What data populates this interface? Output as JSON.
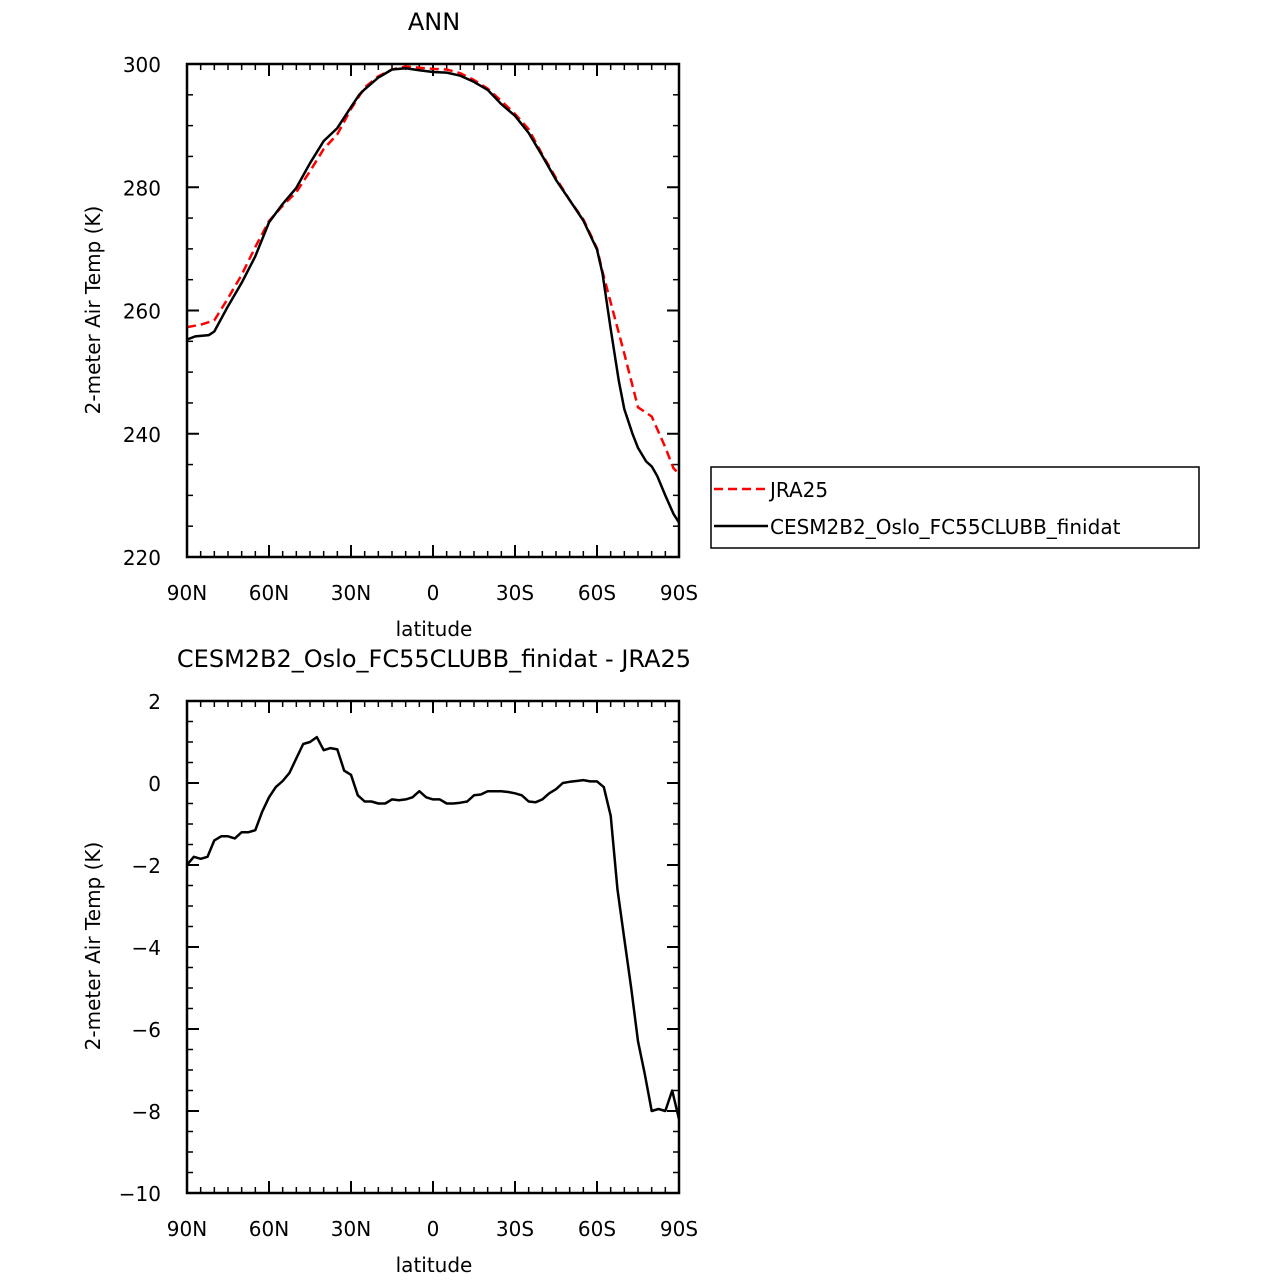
{
  "chart_data": [
    {
      "type": "line",
      "title": "ANN",
      "xlabel": "latitude",
      "ylabel": "2-meter Air Temp (K)",
      "xlim": [
        90,
        -90
      ],
      "ylim": [
        220,
        300
      ],
      "xticks": [
        {
          "value": 90,
          "label": "90N"
        },
        {
          "value": 60,
          "label": "60N"
        },
        {
          "value": 30,
          "label": "30N"
        },
        {
          "value": 0,
          "label": "0"
        },
        {
          "value": -30,
          "label": "30S"
        },
        {
          "value": -60,
          "label": "60S"
        },
        {
          "value": -90,
          "label": "90S"
        }
      ],
      "yticks": [
        {
          "value": 300,
          "label": "300"
        },
        {
          "value": 280,
          "label": "280"
        },
        {
          "value": 260,
          "label": "260"
        },
        {
          "value": 240,
          "label": "240"
        },
        {
          "value": 220,
          "label": "220"
        }
      ],
      "legend_position": "right",
      "series": [
        {
          "name": "JRA25",
          "color": "#ff0000",
          "dash": true,
          "x": [
            90,
            85,
            80,
            75,
            70,
            65,
            60,
            55,
            50,
            45,
            40,
            35,
            30,
            25,
            20,
            15,
            10,
            5,
            0,
            -5,
            -10,
            -15,
            -20,
            -25,
            -30,
            -35,
            -40,
            -45,
            -50,
            -55,
            -60,
            -62,
            -65,
            -70,
            -75,
            -80,
            -85,
            -88,
            -90
          ],
          "y": [
            257.3,
            257.7,
            258.4,
            262.0,
            265.8,
            270.3,
            274.5,
            277.0,
            279.2,
            282.6,
            286.2,
            288.6,
            292.7,
            296.2,
            298.0,
            299.1,
            299.6,
            299.4,
            299.2,
            299.1,
            298.5,
            297.4,
            296.0,
            294.0,
            291.9,
            289.4,
            285.3,
            281.5,
            277.9,
            274.8,
            270.1,
            266.3,
            261.3,
            253.0,
            244.3,
            242.8,
            237.8,
            234.4,
            233.5
          ]
        },
        {
          "name": "CESM2B2_Oslo_FC55CLUBB_finidat",
          "color": "#000000",
          "dash": false,
          "x": [
            90,
            87,
            82,
            80,
            75,
            70,
            65,
            60,
            55,
            50,
            45,
            40,
            35,
            30,
            27,
            25,
            20,
            15,
            10,
            5,
            0,
            -5,
            -10,
            -15,
            -20,
            -25,
            -30,
            -35,
            -40,
            -45,
            -50,
            -55,
            -60,
            -62,
            -65,
            -68,
            -70,
            -73,
            -75,
            -78,
            -80,
            -82,
            -85,
            -88,
            -90
          ],
          "y": [
            255.3,
            255.8,
            256.0,
            256.6,
            260.7,
            264.5,
            268.8,
            274.3,
            277.3,
            279.9,
            283.9,
            287.5,
            289.6,
            293.0,
            295.0,
            295.9,
            297.8,
            299.1,
            299.3,
            299.0,
            298.7,
            298.6,
            298.1,
            297.1,
            295.8,
            293.5,
            291.6,
            288.8,
            285.1,
            281.2,
            277.9,
            274.6,
            269.9,
            266.0,
            257.0,
            248.5,
            244.0,
            240.0,
            237.7,
            235.5,
            234.7,
            233.2,
            230.0,
            227.0,
            225.6
          ]
        }
      ]
    },
    {
      "type": "line",
      "title": "CESM2B2_Oslo_FC55CLUBB_finidat - JRA25",
      "xlabel": "latitude",
      "ylabel": "2-meter Air Temp (K)",
      "xlim": [
        90,
        -90
      ],
      "ylim": [
        -10,
        2
      ],
      "xticks": [
        {
          "value": 90,
          "label": "90N"
        },
        {
          "value": 60,
          "label": "60N"
        },
        {
          "value": 30,
          "label": "30N"
        },
        {
          "value": 0,
          "label": "0"
        },
        {
          "value": -30,
          "label": "30S"
        },
        {
          "value": -60,
          "label": "60S"
        },
        {
          "value": -90,
          "label": "90S"
        }
      ],
      "yticks": [
        {
          "value": 2,
          "label": "2"
        },
        {
          "value": 0,
          "label": "0"
        },
        {
          "value": -2,
          "label": "−2"
        },
        {
          "value": -4,
          "label": "−4"
        },
        {
          "value": -6,
          "label": "−6"
        },
        {
          "value": -8,
          "label": "−8"
        },
        {
          "value": -10,
          "label": "−10"
        }
      ],
      "series": [
        {
          "color": "#000000",
          "x": [
            90,
            87.5,
            85,
            82.5,
            80,
            77.5,
            75,
            72.5,
            70,
            67.5,
            65,
            62.5,
            60,
            57.5,
            55,
            52.5,
            50,
            47.5,
            45,
            42.5,
            40,
            37.5,
            35,
            32.5,
            30,
            27.5,
            25,
            22.5,
            20,
            17.5,
            15,
            12.5,
            10,
            7.5,
            5,
            2.5,
            0,
            -2.5,
            -5,
            -7.5,
            -10,
            -12.5,
            -15,
            -17.5,
            -20,
            -22.5,
            -25,
            -27.5,
            -30,
            -32.5,
            -35,
            -37.5,
            -40,
            -42.5,
            -45,
            -47.5,
            -50,
            -52.5,
            -55,
            -57.5,
            -60,
            -62.5,
            -65,
            -67.5,
            -70,
            -72.5,
            -75,
            -77.5,
            -80,
            -82.5,
            -85,
            -87.5,
            -90
          ],
          "y": [
            -2.0,
            -1.8,
            -1.85,
            -1.8,
            -1.4,
            -1.3,
            -1.3,
            -1.35,
            -1.2,
            -1.2,
            -1.15,
            -0.7,
            -0.35,
            -0.1,
            0.05,
            0.25,
            0.6,
            0.95,
            1.0,
            1.12,
            0.8,
            0.85,
            0.82,
            0.3,
            0.2,
            -0.3,
            -0.45,
            -0.45,
            -0.5,
            -0.5,
            -0.4,
            -0.42,
            -0.4,
            -0.35,
            -0.2,
            -0.35,
            -0.4,
            -0.4,
            -0.5,
            -0.5,
            -0.48,
            -0.45,
            -0.3,
            -0.28,
            -0.2,
            -0.2,
            -0.2,
            -0.22,
            -0.25,
            -0.3,
            -0.45,
            -0.47,
            -0.4,
            -0.25,
            -0.15,
            0.0,
            0.03,
            0.05,
            0.07,
            0.04,
            0.04,
            -0.1,
            -0.8,
            -2.6,
            -3.8,
            -5.0,
            -6.3,
            -7.1,
            -8.0,
            -7.95,
            -8.0,
            -7.5,
            -8.2
          ]
        }
      ]
    }
  ]
}
